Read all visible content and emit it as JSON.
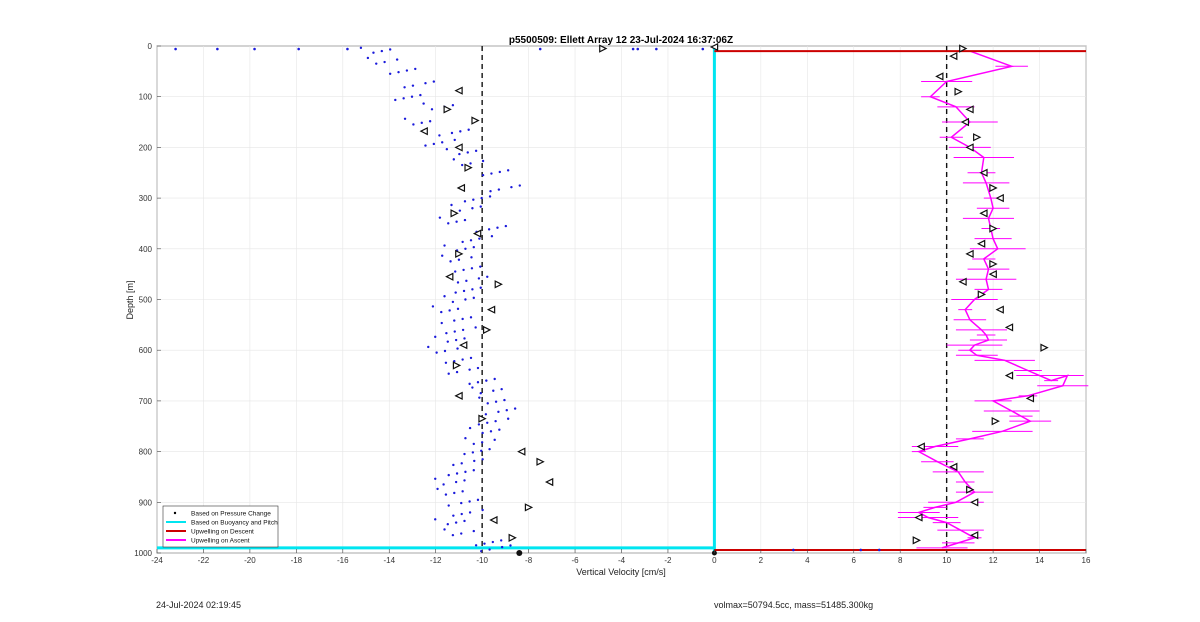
{
  "chart_data": {
    "type": "scatter",
    "title": "p5500509: Ellett Array 12 23-Jul-2024 16:37:06Z",
    "xlabel": "Vertical Velocity [cm/s]",
    "ylabel": "Depth [m]",
    "xlim": [
      -24,
      16
    ],
    "ylim": [
      0,
      1000
    ],
    "y_reversed": true,
    "grid": true,
    "x_ticks": [
      "-24",
      "-22",
      "-20",
      "-18",
      "-16",
      "-14",
      "-12",
      "-10",
      "-8",
      "-6",
      "-4",
      "-2",
      "0",
      "2",
      "4",
      "6",
      "8",
      "10",
      "12",
      "14",
      "16"
    ],
    "y_ticks": [
      "0",
      "100",
      "200",
      "300",
      "400",
      "500",
      "600",
      "700",
      "800",
      "900",
      "1000"
    ],
    "reference_lines_x": [
      -10,
      10
    ],
    "legend_placement": "bottom-left",
    "series": [
      {
        "name": "Based on Pressure Change",
        "kind": "points",
        "color": "#1a1adb",
        "descent_x": [
          -14.5,
          -14.2,
          -13.6,
          -12.8,
          -13.2,
          -11.8,
          -12.6,
          -11.3,
          -11.9,
          -10.8,
          -10.5,
          -9.6,
          -9.1,
          -10.2,
          -10.6,
          -11.1,
          -9.7,
          -10.3,
          -10.9,
          -11.0,
          -10.8,
          -10.5,
          -10.6,
          -10.9,
          -11.4,
          -11.2,
          -11.0,
          -11.3,
          -11.6,
          -11.2,
          -10.9,
          -10.0,
          -9.7,
          -9.4,
          -9.3,
          -9.6,
          -9.8,
          -10.0,
          -10.4,
          -10.7,
          -10.9,
          -11.3,
          -11.2,
          -10.9,
          -10.7,
          -11.3,
          -10.9,
          -9.9,
          -9.5,
          -9.6,
          -9.1,
          -8.6,
          -7.6,
          -7.0,
          -7.7,
          -8.3,
          -7.5,
          -6.9,
          -7.8,
          -8.6,
          -8.9
        ],
        "descent_y": [
          10,
          30,
          50,
          75,
          100,
          120,
          150,
          170,
          190,
          210,
          230,
          250,
          280,
          300,
          320,
          345,
          360,
          380,
          400,
          420,
          440,
          460,
          480,
          500,
          520,
          540,
          560,
          580,
          600,
          620,
          640,
          660,
          680,
          700,
          720,
          740,
          760,
          780,
          800,
          820,
          840,
          860,
          880,
          900,
          920,
          940,
          960,
          980,
          990,
          995,
          998,
          1000,
          1000,
          1000,
          1000,
          1000,
          1000,
          1000,
          1000,
          1000,
          1000
        ],
        "surface_x": [
          -23.2,
          -21.4,
          -19.8,
          -17.9,
          -15.8,
          -7.5,
          -3.5,
          -3.3,
          -2.5,
          -0.5,
          3.4,
          6.3,
          7.1
        ],
        "surface_y": [
          6,
          6,
          6,
          6,
          6,
          6,
          6,
          6,
          6,
          6,
          994,
          994,
          994
        ]
      },
      {
        "name": "Based on Buoyancy and Pitch",
        "kind": "line",
        "color": "#00e5f0",
        "segments": [
          {
            "x": [
              0,
              0
            ],
            "y": [
              0,
              1000
            ]
          },
          {
            "x": [
              -24,
              0
            ],
            "y": [
              990,
              990
            ]
          }
        ]
      },
      {
        "name": "Upwelling on Descent",
        "kind": "line",
        "color": "#cc0000",
        "segments": [
          {
            "x": [
              0,
              16
            ],
            "y": [
              10,
              10
            ]
          },
          {
            "x": [
              0,
              16
            ],
            "y": [
              994,
              994
            ]
          }
        ]
      },
      {
        "name": "Upwelling on Ascent",
        "kind": "line",
        "color": "#ff00ff",
        "x": [
          11.0,
          12.8,
          10.0,
          9.3,
          10.4,
          11.0,
          10.2,
          11.0,
          11.6,
          11.5,
          11.7,
          11.9,
          12.0,
          11.8,
          11.9,
          12.0,
          12.2,
          11.6,
          11.8,
          11.7,
          11.8,
          11.2,
          10.8,
          11.0,
          11.5,
          11.7,
          11.8,
          11.2,
          11.0,
          11.3,
          12.5,
          13.5,
          14.0,
          14.5,
          15.2,
          15.0,
          13.5,
          12.0,
          12.8,
          13.2,
          13.6,
          12.4,
          11.0,
          9.5,
          8.8,
          9.6,
          10.5,
          10.8,
          11.2,
          10.4,
          9.5,
          8.8,
          9.2,
          10.0,
          10.6,
          11.2,
          10.5,
          9.8
        ],
        "y": [
          10,
          40,
          70,
          100,
          120,
          150,
          180,
          200,
          220,
          250,
          270,
          300,
          320,
          340,
          360,
          380,
          400,
          420,
          440,
          460,
          480,
          500,
          520,
          540,
          560,
          570,
          580,
          590,
          600,
          610,
          620,
          640,
          650,
          660,
          650,
          670,
          690,
          700,
          720,
          730,
          740,
          760,
          775,
          790,
          800,
          820,
          840,
          860,
          880,
          900,
          910,
          920,
          930,
          940,
          955,
          970,
          980,
          990
        ]
      }
    ],
    "direction_markers": {
      "descent_x": [
        -12.5,
        -11.5,
        -11.0,
        -10.3,
        -11.0,
        -10.6,
        -10.9,
        -11.2,
        -10.2,
        -11.0,
        -11.4,
        -9.3,
        -9.6,
        -9.8,
        -10.8,
        -11.1,
        -11.0,
        -10.0,
        -8.3,
        -7.5,
        -7.1,
        -8.0,
        -9.5,
        -8.7
      ],
      "descent_y": [
        168,
        125,
        88,
        147,
        200,
        240,
        280,
        330,
        370,
        410,
        455,
        470,
        520,
        560,
        590,
        630,
        690,
        735,
        800,
        820,
        860,
        910,
        935,
        970
      ],
      "ascent_x": [
        10.7,
        10.3,
        9.7,
        10.5,
        11.0,
        10.8,
        11.3,
        11.0,
        11.6,
        12.0,
        12.3,
        11.6,
        12.0,
        11.5,
        11.0,
        12.0,
        12.0,
        10.7,
        11.5,
        12.3,
        12.7,
        14.2,
        12.7,
        13.6,
        12.1,
        8.9,
        10.3,
        11.0,
        11.2,
        8.8,
        8.7,
        11.2
      ],
      "ascent_y": [
        5,
        20,
        60,
        90,
        125,
        150,
        180,
        200,
        250,
        280,
        300,
        330,
        360,
        390,
        410,
        430,
        450,
        465,
        490,
        520,
        555,
        595,
        650,
        695,
        740,
        790,
        830,
        875,
        900,
        930,
        975,
        965
      ]
    },
    "legend": [
      {
        "label": "Based on Pressure Change",
        "style": "dot",
        "color": "#000000"
      },
      {
        "label": "Based on Buoyancy and Pitch",
        "style": "line",
        "color": "#00e5f0"
      },
      {
        "label": "Upwelling on Descent",
        "style": "line",
        "color": "#cc0000"
      },
      {
        "label": "Upwelling on Ascent",
        "style": "line",
        "color": "#ff00ff"
      }
    ]
  },
  "footer": {
    "timestamp": "24-Jul-2024 02:19:45",
    "summary": "volmax=50794.5cc, mass=51485.300kg"
  }
}
